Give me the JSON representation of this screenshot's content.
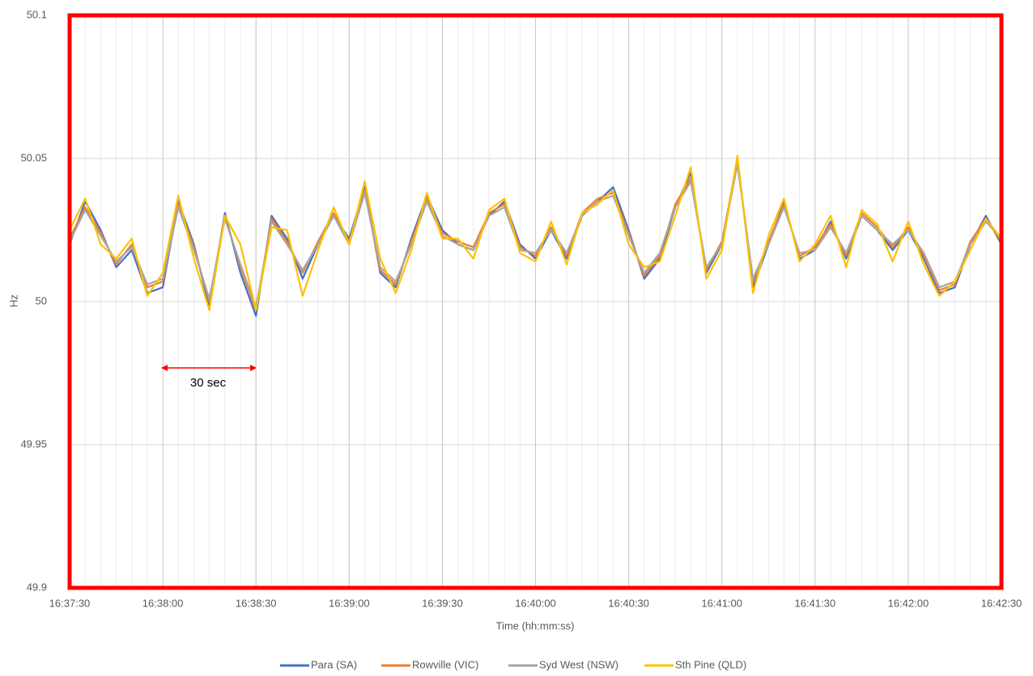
{
  "chart_data": {
    "type": "line",
    "y_label": "Hz",
    "x_label": "Time (hh:mm:ss)",
    "annotation": "30 sec",
    "x": [
      "16:37:30",
      "16:37:35",
      "16:37:40",
      "16:37:45",
      "16:37:50",
      "16:37:55",
      "16:38:00",
      "16:38:05",
      "16:38:10",
      "16:38:15",
      "16:38:20",
      "16:38:25",
      "16:38:30",
      "16:38:35",
      "16:38:40",
      "16:38:45",
      "16:38:50",
      "16:38:55",
      "16:39:00",
      "16:39:05",
      "16:39:10",
      "16:39:15",
      "16:39:20",
      "16:39:25",
      "16:39:30",
      "16:39:35",
      "16:39:40",
      "16:39:45",
      "16:39:50",
      "16:39:55",
      "16:40:00",
      "16:40:05",
      "16:40:10",
      "16:40:15",
      "16:40:20",
      "16:40:25",
      "16:40:30",
      "16:40:35",
      "16:40:40",
      "16:40:45",
      "16:40:50",
      "16:40:55",
      "16:41:00",
      "16:41:05",
      "16:41:10",
      "16:41:15",
      "16:41:20",
      "16:41:25",
      "16:41:30",
      "16:41:35",
      "16:41:40",
      "16:41:45",
      "16:41:50",
      "16:41:55",
      "16:42:00",
      "16:42:05",
      "16:42:10",
      "16:42:15",
      "16:42:20",
      "16:42:25",
      "16:42:30"
    ],
    "xticks": [
      "16:37:30",
      "16:38:00",
      "16:38:30",
      "16:39:00",
      "16:39:30",
      "16:40:00",
      "16:40:30",
      "16:41:00",
      "16:41:30",
      "16:42:00",
      "16:42:30"
    ],
    "ylim": [
      49.9,
      50.1
    ],
    "yticks": [
      49.9,
      49.95,
      50,
      50.05,
      50.1
    ],
    "grid": true,
    "series": [
      {
        "name": "Para (SA)",
        "color": "#4472c4",
        "values": [
          50.02,
          50.035,
          50.025,
          50.012,
          50.018,
          50.003,
          50.005,
          50.035,
          50.02,
          49.998,
          50.031,
          50.01,
          49.995,
          50.03,
          50.022,
          50.008,
          50.02,
          50.03,
          50.022,
          50.04,
          50.01,
          50.005,
          50.022,
          50.037,
          50.025,
          50.02,
          50.018,
          50.03,
          50.035,
          50.02,
          50.015,
          50.025,
          50.015,
          50.03,
          50.035,
          50.04,
          50.025,
          50.008,
          50.015,
          50.033,
          50.045,
          50.01,
          50.02,
          50.05,
          50.005,
          50.02,
          50.035,
          50.015,
          50.018,
          50.028,
          50.015,
          50.03,
          50.025,
          50.018,
          50.025,
          50.015,
          50.003,
          50.005,
          50.02,
          50.03,
          50.02
        ]
      },
      {
        "name": "Rowville  (VIC)",
        "color": "#ed7d31",
        "values": [
          50.022,
          50.033,
          50.024,
          50.013,
          50.02,
          50.005,
          50.007,
          50.034,
          50.019,
          50.0,
          50.03,
          50.012,
          49.997,
          50.029,
          50.021,
          50.01,
          50.021,
          50.031,
          50.021,
          50.039,
          50.011,
          50.006,
          50.021,
          50.036,
          50.024,
          50.021,
          50.019,
          50.031,
          50.034,
          50.019,
          50.016,
          50.026,
          50.016,
          50.031,
          50.036,
          50.038,
          50.024,
          50.009,
          50.016,
          50.034,
          50.043,
          50.011,
          50.021,
          50.049,
          50.007,
          50.021,
          50.034,
          50.016,
          50.019,
          50.027,
          50.016,
          50.031,
          50.026,
          50.019,
          50.026,
          50.016,
          50.004,
          50.006,
          50.021,
          50.029,
          50.021
        ]
      },
      {
        "name": "Syd West (NSW)",
        "color": "#a5a5a5",
        "values": [
          50.021,
          50.032,
          50.023,
          50.014,
          50.019,
          50.006,
          50.008,
          50.033,
          50.018,
          50.001,
          50.029,
          50.013,
          49.998,
          50.028,
          50.02,
          50.011,
          50.02,
          50.03,
          50.02,
          50.038,
          50.012,
          50.007,
          50.02,
          50.035,
          50.023,
          50.02,
          50.018,
          50.03,
          50.033,
          50.018,
          50.017,
          50.025,
          50.017,
          50.03,
          50.035,
          50.037,
          50.023,
          50.01,
          50.017,
          50.033,
          50.042,
          50.012,
          50.02,
          50.048,
          50.008,
          50.02,
          50.033,
          50.017,
          50.018,
          50.026,
          50.017,
          50.03,
          50.025,
          50.02,
          50.025,
          50.017,
          50.005,
          50.007,
          50.02,
          50.028,
          50.022
        ]
      },
      {
        "name": "Sth Pine (QLD)",
        "color": "#ffc000",
        "values": [
          50.025,
          50.036,
          50.02,
          50.015,
          50.022,
          50.002,
          50.01,
          50.037,
          50.015,
          49.997,
          50.03,
          50.02,
          49.997,
          50.026,
          50.025,
          50.002,
          50.018,
          50.033,
          50.02,
          50.042,
          50.015,
          50.003,
          50.018,
          50.038,
          50.022,
          50.022,
          50.015,
          50.032,
          50.036,
          50.017,
          50.014,
          50.028,
          50.013,
          50.031,
          50.034,
          50.039,
          50.02,
          50.012,
          50.014,
          50.03,
          50.047,
          50.008,
          50.018,
          50.051,
          50.003,
          50.023,
          50.036,
          50.014,
          50.02,
          50.03,
          50.012,
          50.032,
          50.027,
          50.014,
          50.028,
          50.013,
          50.002,
          50.007,
          50.018,
          50.029,
          50.022
        ]
      }
    ]
  }
}
